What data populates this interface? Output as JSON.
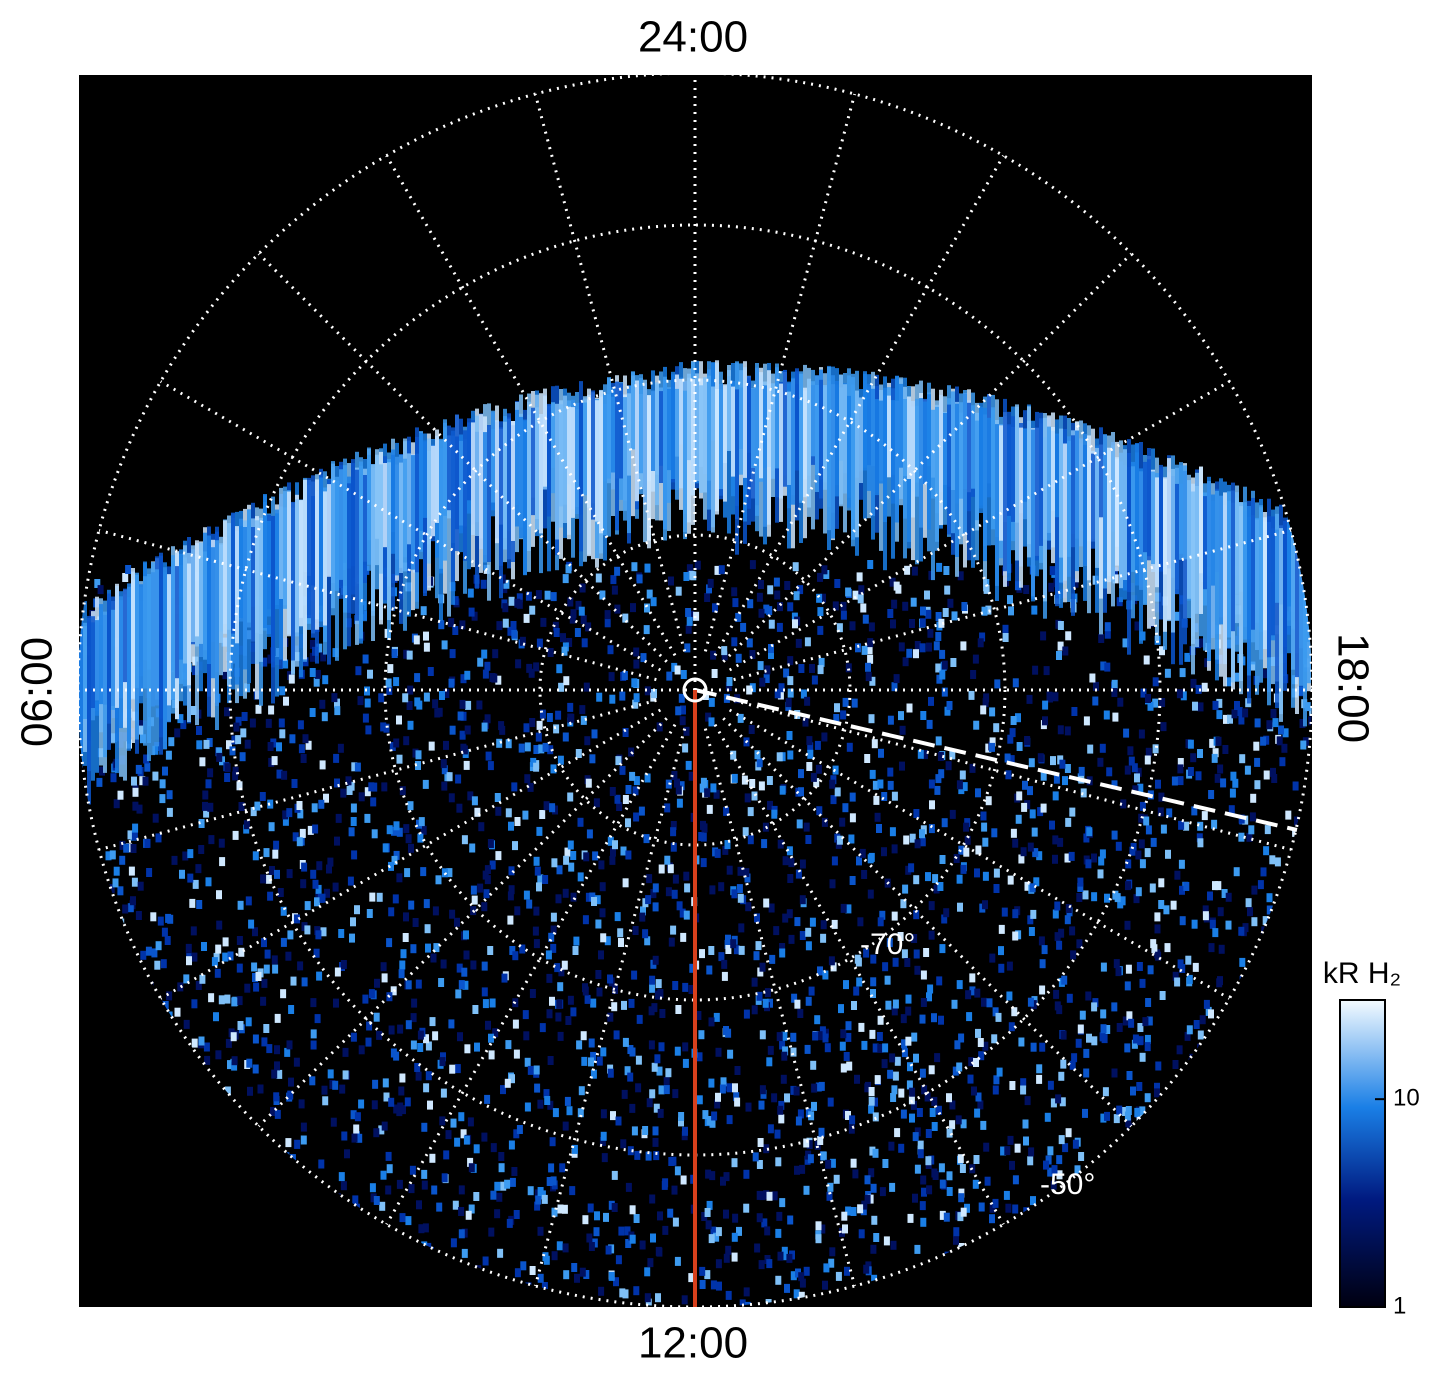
{
  "time_labels": {
    "top": "24:00",
    "bottom": "12:00",
    "left": "06:00",
    "right": "18:00"
  },
  "latitude_labels": [
    "-70°",
    "-50°"
  ],
  "colorbar": {
    "title": "kR H₂",
    "scale": "log",
    "lim": [
      1,
      30
    ],
    "ticks": [
      1,
      10
    ]
  }
}
